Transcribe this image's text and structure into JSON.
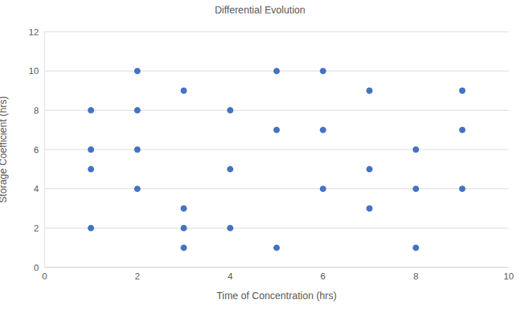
{
  "chart_data": {
    "type": "scatter",
    "title": "Differential Evolution",
    "x_label": "Time of Concentration (hrs)",
    "y_label": "Storage Coefficient (hrs)",
    "x": [
      1,
      1,
      1,
      1,
      2,
      2,
      2,
      2,
      3,
      3,
      3,
      3,
      4,
      4,
      4,
      5,
      5,
      5,
      6,
      6,
      6,
      7,
      7,
      7,
      8,
      8,
      8,
      9,
      9,
      9
    ],
    "values": [
      8,
      6,
      5,
      2,
      10,
      8,
      6,
      4,
      9,
      3,
      2,
      1,
      8,
      5,
      2,
      10,
      7,
      1,
      10,
      7,
      4,
      9,
      5,
      3,
      6,
      4,
      1,
      9,
      7,
      4
    ],
    "color": "#4472c4",
    "marker": "circle",
    "xlim": [
      0,
      10
    ],
    "xticks": [
      0,
      2,
      4,
      6,
      8,
      10
    ],
    "ylim": [
      0,
      12
    ],
    "yticks": [
      0,
      2,
      4,
      6,
      8,
      10,
      12
    ],
    "grid": true
  }
}
